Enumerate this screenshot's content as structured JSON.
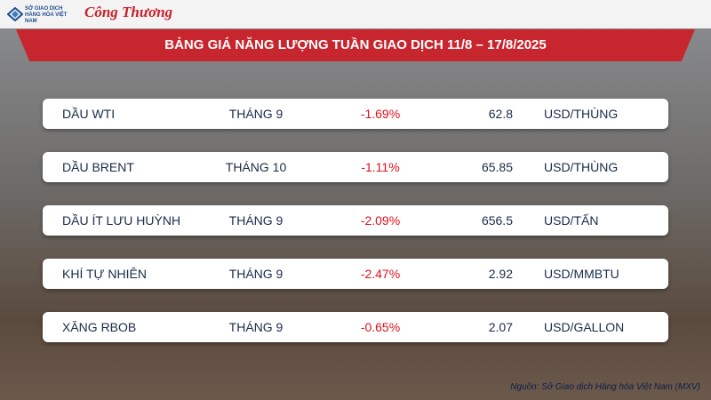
{
  "header": {
    "logo_exchange": "SỞ GIAO DỊCH HÀNG HÓA VIỆT NAM",
    "logo_newspaper": "Công Thương"
  },
  "title": "BẢNG GIÁ NĂNG LƯỢNG TUẦN GIAO DỊCH 11/8 – 17/8/2025",
  "table": {
    "rows": [
      [
        "DẦU WTI",
        "THÁNG 9",
        "-1.69%",
        "62.8",
        "USD/THÙNG"
      ],
      [
        "DẦU BRENT",
        "THÁNG 10",
        "-1.11%",
        "65.85",
        "USD/THÙNG"
      ],
      [
        "DẦU ÍT LƯU HUỲNH",
        "THÁNG 9",
        "-2.09%",
        "656.5",
        "USD/TẤN"
      ],
      [
        "KHÍ TỰ NHIÊN",
        "THÁNG 9",
        "-2.47%",
        "2.92",
        "USD/MMBTU"
      ],
      [
        "XĂNG RBOB",
        "THÁNG 9",
        "-0.65%",
        "2.07",
        "USD/GALLON"
      ]
    ]
  },
  "source": "Nguồn: Sở Giao dịch Hàng hóa Việt Nam (MXV)"
}
